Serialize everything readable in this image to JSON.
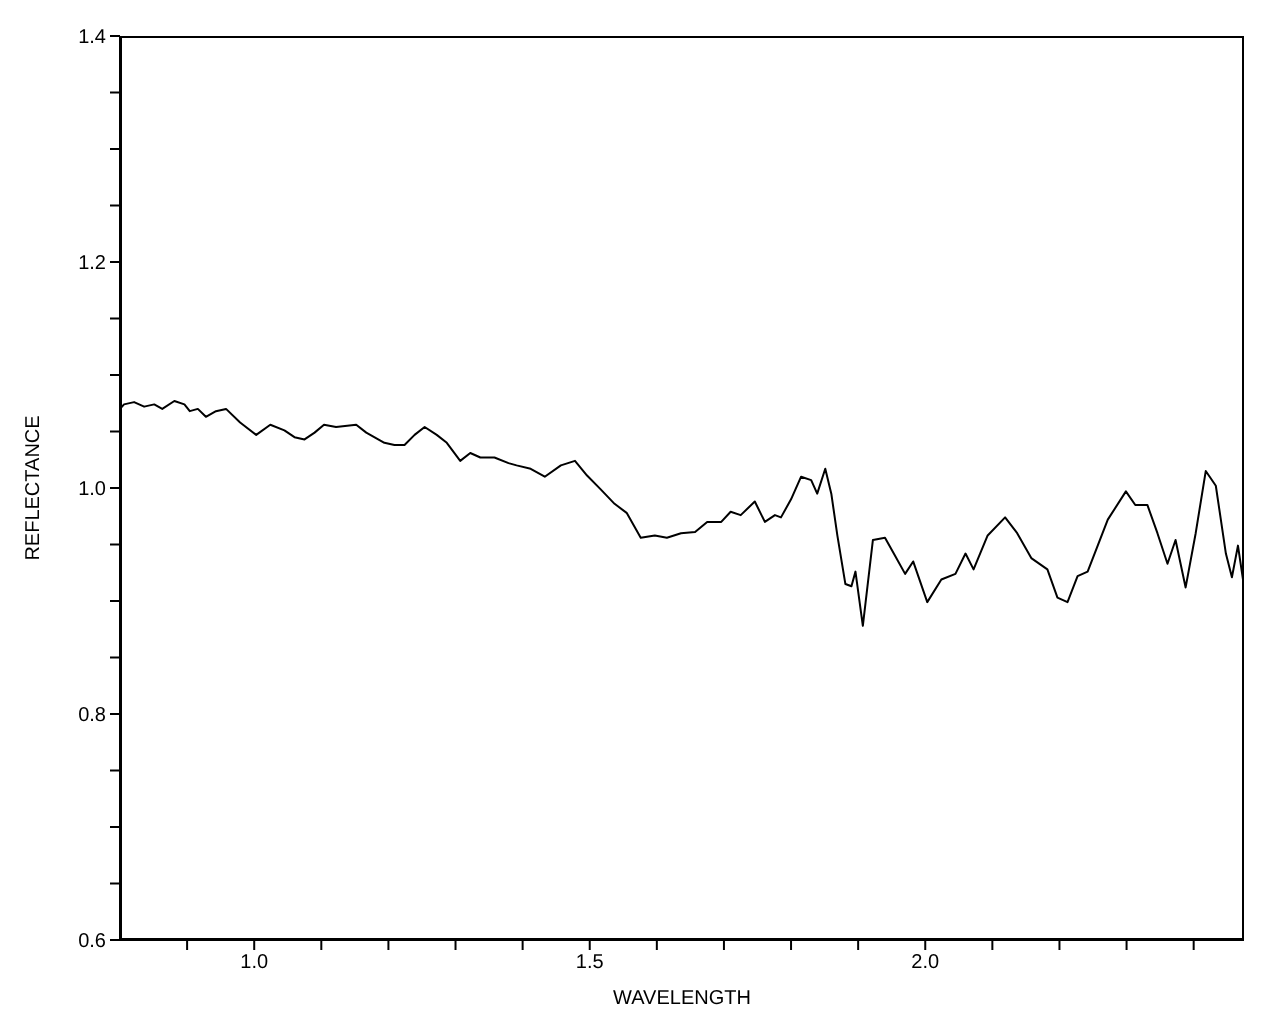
{
  "chart_data": {
    "type": "line",
    "xlabel": "WAVELENGTH",
    "ylabel": "REFLECTANCE",
    "color": "#000000",
    "grid": false,
    "legend": false,
    "marker": "none",
    "line_style": "solid",
    "xlim": [
      0.8,
      2.475
    ],
    "ylim": [
      0.6,
      1.4
    ],
    "xticks": [
      {
        "value": 0.9,
        "label": null
      },
      {
        "value": 1,
        "label": "1.0"
      },
      {
        "value": 1.1,
        "label": null
      },
      {
        "value": 1.2,
        "label": null
      },
      {
        "value": 1.3,
        "label": null
      },
      {
        "value": 1.4,
        "label": null
      },
      1.5,
      {
        "value": 1.6,
        "label": null
      },
      {
        "value": 1.7,
        "label": null
      },
      {
        "value": 1.8,
        "label": null
      },
      {
        "value": 1.9,
        "label": null
      },
      {
        "value": 2,
        "label": "2.0"
      },
      {
        "value": 2.1,
        "label": null
      },
      {
        "value": 2.2,
        "label": null
      },
      {
        "value": 2.3,
        "label": null
      },
      {
        "value": 2.4,
        "label": null
      }
    ],
    "yticks": [
      0.6,
      {
        "value": 0.65,
        "label": null
      },
      {
        "value": 0.7,
        "label": null
      },
      {
        "value": 0.75,
        "label": null
      },
      0.8,
      {
        "value": 0.85,
        "label": null
      },
      {
        "value": 0.9,
        "label": null
      },
      {
        "value": 0.95,
        "label": null
      },
      {
        "value": 1,
        "label": "1.0"
      },
      {
        "value": 1.05,
        "label": null
      },
      {
        "value": 1.1,
        "label": null
      },
      {
        "value": 1.15,
        "label": null
      },
      1.2,
      {
        "value": 1.25,
        "label": null
      },
      {
        "value": 1.3,
        "label": null
      },
      {
        "value": 1.35,
        "label": null
      },
      1.4
    ],
    "x": [
      0.8,
      0.806,
      0.821,
      0.836,
      0.851,
      0.863,
      0.881,
      0.896,
      0.904,
      0.916,
      0.928,
      0.943,
      0.958,
      0.979,
      1.003,
      1.024,
      1.045,
      1.06,
      1.075,
      1.09,
      1.104,
      1.122,
      1.152,
      1.167,
      1.194,
      1.209,
      1.224,
      1.239,
      1.254,
      1.272,
      1.287,
      1.307,
      1.322,
      1.337,
      1.358,
      1.379,
      1.391,
      1.412,
      1.433,
      1.457,
      1.478,
      1.496,
      1.516,
      1.537,
      1.555,
      1.576,
      1.597,
      1.615,
      1.636,
      1.657,
      1.675,
      1.696,
      1.71,
      1.725,
      1.746,
      1.761,
      1.776,
      1.785,
      1.8,
      1.815,
      1.83,
      1.839,
      1.851,
      1.86,
      1.869,
      1.881,
      1.89,
      1.896,
      1.907,
      1.922,
      1.94,
      1.955,
      1.97,
      1.982,
      2.003,
      2.024,
      2.045,
      2.06,
      2.072,
      2.093,
      2.119,
      2.137,
      2.158,
      2.182,
      2.197,
      2.212,
      2.227,
      2.242,
      2.257,
      2.272,
      2.299,
      2.313,
      2.331,
      2.346,
      2.361,
      2.373,
      2.388,
      2.403,
      2.418,
      2.433,
      2.448,
      2.457,
      2.466,
      2.475
    ],
    "values": [
      1.07,
      1.074,
      1.076,
      1.072,
      1.074,
      1.07,
      1.077,
      1.074,
      1.068,
      1.07,
      1.063,
      1.068,
      1.07,
      1.058,
      1.047,
      1.056,
      1.051,
      1.045,
      1.043,
      1.049,
      1.056,
      1.054,
      1.056,
      1.049,
      1.04,
      1.038,
      1.038,
      1.047,
      1.054,
      1.047,
      1.04,
      1.024,
      1.031,
      1.027,
      1.027,
      1.022,
      1.02,
      1.017,
      1.01,
      1.02,
      1.024,
      1.011,
      0.999,
      0.986,
      0.978,
      0.956,
      0.958,
      0.956,
      0.96,
      0.961,
      0.97,
      0.97,
      0.979,
      0.976,
      0.988,
      0.97,
      0.976,
      0.974,
      0.99,
      1.01,
      1.007,
      0.995,
      1.017,
      0.995,
      0.958,
      0.915,
      0.913,
      0.926,
      0.878,
      0.954,
      0.956,
      0.94,
      0.924,
      0.935,
      0.899,
      0.919,
      0.924,
      0.942,
      0.928,
      0.958,
      0.974,
      0.96,
      0.938,
      0.928,
      0.903,
      0.899,
      0.922,
      0.926,
      0.949,
      0.972,
      0.997,
      0.985,
      0.985,
      0.96,
      0.933,
      0.954,
      0.912,
      0.96,
      1.015,
      1.002,
      0.942,
      0.921,
      0.949,
      0.913
    ]
  }
}
